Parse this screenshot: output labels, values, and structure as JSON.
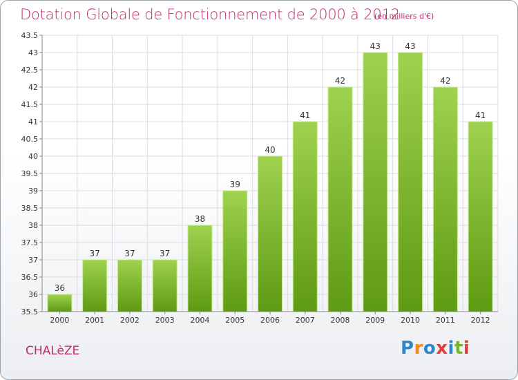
{
  "header": {
    "title": "Dotation Globale de Fonctionnement de 2000 à 2012",
    "subtitle": "(en milliers d'€)"
  },
  "footer": {
    "commune": "CHALèZE",
    "logo_text": "Proxiti",
    "logo_colors": [
      "#2f86c9",
      "#f08a1c",
      "#2f86c9",
      "#e23b3b",
      "#2f86c9",
      "#76b82a",
      "#e23b3b"
    ]
  },
  "colors": {
    "bar_top": "#9fd24f",
    "bar_bottom": "#5e9a12",
    "bar_edge": "#c9ea8f",
    "grid": "#d8dce0",
    "accent": "#c02a6e"
  },
  "chart_data": {
    "type": "bar",
    "title": "Dotation Globale de Fonctionnement de 2000 à 2012",
    "subtitle": "(en milliers d'€)",
    "categories": [
      "2000",
      "2001",
      "2002",
      "2003",
      "2004",
      "2005",
      "2006",
      "2007",
      "2008",
      "2009",
      "2010",
      "2011",
      "2012"
    ],
    "values": [
      36,
      37,
      37,
      37,
      38,
      39,
      40,
      41,
      42,
      43,
      43,
      42,
      41
    ],
    "ylim": [
      35.5,
      43.5
    ],
    "yticks": [
      "35.5",
      "36",
      "36.5",
      "37",
      "37.5",
      "38",
      "38.5",
      "39",
      "39.5",
      "40",
      "40.5",
      "41",
      "41.5",
      "42",
      "42.5",
      "43",
      "43.5"
    ],
    "grid": true,
    "legend": "none"
  }
}
